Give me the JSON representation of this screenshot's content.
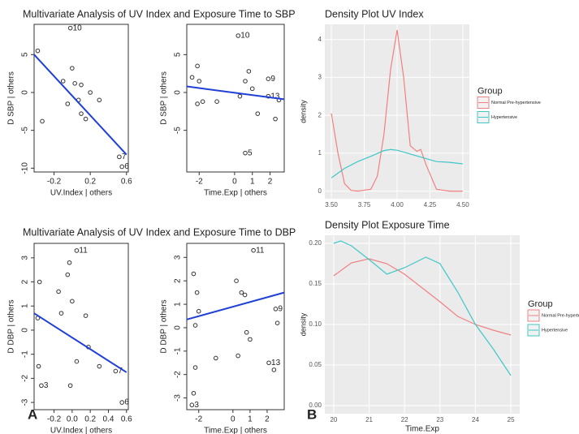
{
  "section_titles": [
    "Multivariate Analysis of UV Index and Exposure Time to SBP",
    "Multivariate Analysis of UV Index and Exposure Time to DBP"
  ],
  "panel_labels": [
    "A",
    "B"
  ],
  "chart_data": [
    {
      "type": "scatter",
      "x_label": "UV.Index | others",
      "y_label": "D SBP | others",
      "xlim": [
        -0.42,
        0.62
      ],
      "xticks": [
        -0.2,
        0.2,
        0.6
      ],
      "ylim": [
        -10.5,
        9
      ],
      "yticks": [
        -10,
        -5,
        0,
        5
      ],
      "x": [
        -0.38,
        -0.33,
        -0.02,
        -0.1,
        0,
        0.03,
        -0.05,
        0.1,
        0.07,
        0.15,
        0.2,
        0.3,
        0.52,
        0.55,
        0.1
      ],
      "values": [
        5.5,
        -3.8,
        8.5,
        1.5,
        3.2,
        1.2,
        -1.5,
        -2.8,
        -1.0,
        -3.5,
        0,
        -1,
        -8.5,
        -9.8,
        1.0
      ],
      "point_labels": [
        null,
        null,
        "10",
        null,
        null,
        null,
        null,
        null,
        null,
        null,
        null,
        null,
        "7",
        "6",
        null
      ],
      "fit": {
        "x": [
          -0.42,
          0.6
        ],
        "values": [
          5,
          -8.2
        ]
      },
      "fit_color": "#1f3fd6"
    },
    {
      "type": "scatter",
      "x_label": "Time.Exp | others",
      "y_label": "D SBP | others",
      "xlim": [
        -2.7,
        2.8
      ],
      "xticks": [
        -2,
        0,
        1,
        2
      ],
      "ylim": [
        -10.5,
        9
      ],
      "yticks": [
        -5,
        0,
        5
      ],
      "x": [
        -2.4,
        -2.1,
        -2.0,
        -1.8,
        -2.1,
        -1.0,
        0.2,
        0.6,
        0.8,
        1.0,
        1.3,
        1.9,
        1.9,
        2.3,
        2.5,
        0.6,
        0.3
      ],
      "values": [
        2,
        3.5,
        1.5,
        -1.2,
        -1.5,
        -1.2,
        7.5,
        1.5,
        2.8,
        0.5,
        -2.8,
        1.8,
        -0.5,
        -3.5,
        -1,
        -8,
        -0.5
      ],
      "point_labels": [
        null,
        null,
        null,
        null,
        null,
        null,
        "10",
        null,
        null,
        null,
        null,
        "9",
        "13",
        null,
        null,
        "5",
        null
      ],
      "fit": {
        "x": [
          -2.7,
          2.8
        ],
        "values": [
          0.8,
          -0.9
        ]
      },
      "fit_color": "#1f3fd6"
    },
    {
      "type": "scatter",
      "x_label": "UV.Index | others",
      "y_label": "D DBP | others",
      "xlim": [
        -0.42,
        0.62
      ],
      "xticks": [
        -0.2,
        {
          "value": 0,
          "label": "0.0"
        },
        0.2,
        0.4,
        0.6
      ],
      "ylim": [
        -3.3,
        3.6
      ],
      "yticks": [
        -3,
        -2,
        -1,
        0,
        1,
        2,
        3
      ],
      "x": [
        -0.38,
        -0.36,
        -0.37,
        -0.34,
        -0.15,
        -0.12,
        -0.05,
        -0.03,
        0.05,
        0,
        0.05,
        -0.02,
        0.15,
        0.18,
        0.3,
        0.48,
        0.55
      ],
      "values": [
        0.5,
        2.0,
        -1.5,
        -2.3,
        1.6,
        0.7,
        2.3,
        2.8,
        3.3,
        1.2,
        -1.3,
        -2.3,
        0.6,
        -0.7,
        -1.5,
        -1.7,
        -3
      ],
      "point_labels": [
        null,
        null,
        null,
        "3",
        null,
        null,
        null,
        null,
        "11",
        null,
        null,
        null,
        null,
        null,
        null,
        "7",
        "6"
      ],
      "fit": {
        "x": [
          -0.42,
          0.6
        ],
        "values": [
          0.7,
          -1.75
        ]
      },
      "fit_color": "#1f3fd6"
    },
    {
      "type": "scatter",
      "x_label": "Time.Exp | others",
      "y_label": "D DBP | others",
      "xlim": [
        -2.7,
        3
      ],
      "xticks": [
        -2,
        0,
        1,
        2
      ],
      "ylim": [
        -3.5,
        3.6
      ],
      "yticks": [
        -3,
        -2,
        -1,
        0,
        1,
        2,
        3
      ],
      "x": [
        -2.3,
        -2.1,
        -2.2,
        -2.0,
        -2.2,
        -2.3,
        -2.4,
        -1.0,
        0.2,
        0.5,
        0.7,
        0.8,
        1.0,
        1.2,
        2.1,
        2.4,
        2.5,
        2.6,
        0.3
      ],
      "values": [
        2.3,
        1.5,
        0.1,
        0.7,
        -1.7,
        -2.8,
        -3.3,
        -1.3,
        2,
        1.5,
        1.4,
        -0.2,
        -0.5,
        3.3,
        -1.5,
        -1.8,
        0.8,
        0.2,
        -1.2
      ],
      "point_labels": [
        null,
        null,
        null,
        null,
        null,
        null,
        "3",
        null,
        null,
        null,
        null,
        null,
        null,
        "11",
        "13",
        null,
        "9",
        null,
        null
      ],
      "fit": {
        "x": [
          -2.7,
          3
        ],
        "values": [
          0.35,
          1.5
        ]
      },
      "fit_color": "#1f3fd6"
    },
    {
      "type": "line",
      "title": "Density Plot UV Index",
      "y_label": "density",
      "legend_title": "Group",
      "legend": "right",
      "grid": true,
      "xlim": [
        3.45,
        4.55
      ],
      "xticks": [
        {
          "value": 3.5,
          "label": "3.50"
        },
        {
          "value": 3.75,
          "label": "3.75"
        },
        {
          "value": 4.0,
          "label": "4.00"
        },
        {
          "value": 4.25,
          "label": "4.25"
        },
        {
          "value": 4.5,
          "label": "4.50"
        }
      ],
      "ylim": [
        -0.2,
        4.4
      ],
      "yticks": [
        0,
        1,
        2,
        3,
        4
      ],
      "series": [
        {
          "name": "Normal Pre-hypertensive",
          "color": "#f08080",
          "x": [
            3.5,
            3.55,
            3.6,
            3.65,
            3.7,
            3.8,
            3.85,
            3.9,
            3.95,
            4.0,
            4.05,
            4.1,
            4.15,
            4.18,
            4.22,
            4.3,
            4.4,
            4.5
          ],
          "values": [
            2.05,
            1.0,
            0.2,
            0.02,
            0,
            0.05,
            0.4,
            1.5,
            3.2,
            4.25,
            3.0,
            1.2,
            1.05,
            1.1,
            0.7,
            0.05,
            0,
            0
          ]
        },
        {
          "name": "Hypertensive",
          "color": "#3fc7c7",
          "x": [
            3.5,
            3.6,
            3.7,
            3.8,
            3.9,
            3.95,
            4.0,
            4.1,
            4.2,
            4.3,
            4.4,
            4.5
          ],
          "values": [
            0.35,
            0.6,
            0.78,
            0.92,
            1.07,
            1.1,
            1.08,
            0.98,
            0.88,
            0.78,
            0.76,
            0.72
          ]
        }
      ]
    },
    {
      "type": "line",
      "title": "Density Plot Exposure Time",
      "x_label": "Time.Exp",
      "y_label": "density",
      "legend_title": "Group",
      "legend": "right",
      "grid": true,
      "xlim": [
        19.75,
        25.25
      ],
      "xticks": [
        20,
        21,
        22,
        23,
        24,
        25
      ],
      "ylim": [
        -0.01,
        0.21
      ],
      "yticks": [
        {
          "value": 0,
          "label": "0.00"
        },
        {
          "value": 0.05,
          "label": "0.05"
        },
        {
          "value": 0.1,
          "label": "0.10"
        },
        {
          "value": 0.15,
          "label": "0.15"
        },
        {
          "value": 0.2,
          "label": "0.20"
        }
      ],
      "series": [
        {
          "name": "Normal Pre-hypertensive",
          "color": "#f08080",
          "x": [
            20,
            20.5,
            21,
            21.5,
            22,
            22.5,
            23,
            23.5,
            24,
            24.5,
            25
          ],
          "values": [
            0.16,
            0.176,
            0.181,
            0.175,
            0.162,
            0.145,
            0.128,
            0.11,
            0.1,
            0.093,
            0.087
          ]
        },
        {
          "name": "Hypertensive",
          "color": "#3fc7c7",
          "x": [
            20,
            20.2,
            20.5,
            21,
            21.5,
            22,
            22.6,
            23,
            23.5,
            24,
            24.5,
            25
          ],
          "values": [
            0.2,
            0.203,
            0.197,
            0.18,
            0.162,
            0.17,
            0.183,
            0.175,
            0.14,
            0.1,
            0.07,
            0.037
          ]
        }
      ]
    }
  ]
}
